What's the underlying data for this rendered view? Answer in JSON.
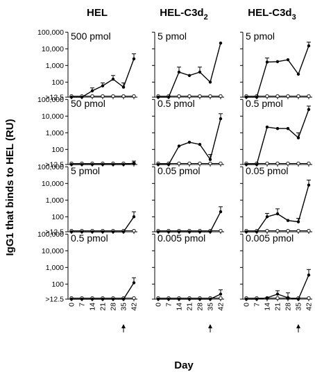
{
  "figure": {
    "ylabel": "IgG1 that binds to HEL (RU)",
    "xlabel": "Day",
    "columns": [
      "HEL",
      "HEL-C3d",
      "HEL-C3d"
    ],
    "column_subscripts": [
      "",
      "2",
      "3"
    ],
    "yticks": [
      "100,000",
      "10,000",
      "1,000",
      "100",
      ">12.5"
    ],
    "xticks": [
      "0",
      "7",
      "14",
      "21",
      "28",
      "35",
      "42"
    ],
    "arrow_day": 35
  },
  "chart_data": [
    {
      "type": "line",
      "column": "HEL",
      "dose": "500 pmol",
      "x": [
        0,
        7,
        14,
        21,
        28,
        35,
        42
      ],
      "series": [
        {
          "values": [
            12.5,
            12.5,
            30,
            60,
            150,
            50,
            2500
          ],
          "errors": [
            null,
            null,
            15,
            30,
            100,
            40,
            2500
          ]
        }
      ],
      "control": [
        12.5,
        12.5,
        12.5,
        12.5,
        12.5,
        12.5,
        12.5
      ]
    },
    {
      "type": "line",
      "column": "HEL-C3d2",
      "dose": "5 pmol",
      "x": [
        0,
        7,
        14,
        21,
        28,
        35,
        42
      ],
      "series": [
        {
          "values": [
            12.5,
            12.5,
            400,
            250,
            400,
            100,
            22000
          ],
          "errors": [
            null,
            null,
            400,
            null,
            400,
            null,
            null
          ]
        }
      ],
      "control": [
        12.5,
        12.5,
        12.5,
        12.5,
        12.5,
        12.5,
        12.5
      ]
    },
    {
      "type": "line",
      "column": "HEL-C3d3",
      "dose": "5 pmol",
      "x": [
        0,
        7,
        14,
        21,
        28,
        35,
        42
      ],
      "series": [
        {
          "values": [
            12.5,
            12.5,
            1600,
            1700,
            2200,
            300,
            15000
          ],
          "errors": [
            null,
            null,
            1200,
            null,
            null,
            null,
            10000
          ]
        }
      ],
      "control": [
        12.5,
        12.5,
        12.5,
        12.5,
        12.5,
        12.5,
        12.5
      ]
    },
    {
      "type": "line",
      "column": "HEL",
      "dose": "50 pmol",
      "x": [
        0,
        7,
        14,
        21,
        28,
        35,
        42
      ],
      "series": [
        {
          "values": [
            12.5,
            12.5,
            12.5,
            12.5,
            12.5,
            12.5,
            15
          ],
          "errors": [
            null,
            null,
            null,
            null,
            null,
            null,
            5
          ]
        }
      ],
      "control": [
        12.5,
        12.5,
        12.5,
        12.5,
        12.5,
        12.5,
        12.5
      ]
    },
    {
      "type": "line",
      "column": "HEL-C3d2",
      "dose": "0.5 pmol",
      "x": [
        0,
        7,
        14,
        21,
        28,
        35,
        42
      ],
      "series": [
        {
          "values": [
            12.5,
            12.5,
            160,
            270,
            200,
            25,
            7000
          ],
          "errors": [
            null,
            null,
            null,
            null,
            null,
            25,
            7000
          ]
        }
      ],
      "control": [
        12.5,
        12.5,
        12.5,
        12.5,
        12.5,
        12.5,
        12.5
      ]
    },
    {
      "type": "line",
      "column": "HEL-C3d3",
      "dose": "0.5 pmol",
      "x": [
        0,
        7,
        14,
        21,
        28,
        35,
        42
      ],
      "series": [
        {
          "values": [
            12.5,
            12.5,
            2200,
            1800,
            1800,
            500,
            25000
          ],
          "errors": [
            null,
            null,
            null,
            null,
            null,
            500,
            15000
          ]
        }
      ],
      "control": [
        12.5,
        12.5,
        12.5,
        12.5,
        12.5,
        12.5,
        12.5
      ]
    },
    {
      "type": "line",
      "column": "HEL",
      "dose": "5 pmol",
      "x": [
        0,
        7,
        14,
        21,
        28,
        35,
        42
      ],
      "series": [
        {
          "values": [
            12.5,
            12.5,
            12.5,
            12.5,
            12.5,
            12.5,
            100
          ],
          "errors": [
            null,
            null,
            null,
            null,
            null,
            null,
            100
          ]
        }
      ],
      "control": [
        12.5,
        12.5,
        12.5,
        12.5,
        12.5,
        12.5,
        12.5
      ]
    },
    {
      "type": "line",
      "column": "HEL-C3d2",
      "dose": "0.05 pmol",
      "x": [
        0,
        7,
        14,
        21,
        28,
        35,
        42
      ],
      "series": [
        {
          "values": [
            12.5,
            12.5,
            12.5,
            12.5,
            12.5,
            12.5,
            200
          ],
          "errors": [
            null,
            null,
            null,
            null,
            null,
            null,
            200
          ]
        }
      ],
      "control": [
        12.5,
        12.5,
        12.5,
        12.5,
        12.5,
        12.5,
        12.5
      ]
    },
    {
      "type": "line",
      "column": "HEL-C3d3",
      "dose": "0.05 pmol",
      "x": [
        0,
        7,
        14,
        21,
        28,
        35,
        42
      ],
      "series": [
        {
          "values": [
            12.5,
            12.5,
            100,
            150,
            60,
            50,
            8000
          ],
          "errors": [
            null,
            null,
            60,
            150,
            null,
            30,
            8000
          ]
        }
      ],
      "control": [
        12.5,
        12.5,
        12.5,
        12.5,
        12.5,
        12.5,
        12.5
      ]
    },
    {
      "type": "line",
      "column": "HEL",
      "dose": "0.5 pmol",
      "x": [
        0,
        7,
        14,
        21,
        28,
        35,
        42
      ],
      "series": [
        {
          "values": [
            12.5,
            12.5,
            12.5,
            12.5,
            12.5,
            12.5,
            120
          ],
          "errors": [
            null,
            null,
            null,
            null,
            null,
            null,
            120
          ]
        }
      ],
      "control": [
        12.5,
        12.5,
        12.5,
        12.5,
        12.5,
        12.5,
        12.5
      ]
    },
    {
      "type": "line",
      "column": "HEL-C3d2",
      "dose": "0.005 pmol",
      "x": [
        0,
        7,
        14,
        21,
        28,
        35,
        42
      ],
      "series": [
        {
          "values": [
            12.5,
            12.5,
            12.5,
            12.5,
            12.5,
            12.5,
            25
          ],
          "errors": [
            null,
            null,
            null,
            null,
            null,
            null,
            20
          ]
        }
      ],
      "control": [
        12.5,
        12.5,
        12.5,
        12.5,
        12.5,
        12.5,
        12.5
      ]
    },
    {
      "type": "line",
      "column": "HEL-C3d3",
      "dose": "0.005 pmol",
      "x": [
        0,
        7,
        14,
        21,
        28,
        35,
        42
      ],
      "series": [
        {
          "values": [
            12.5,
            12.5,
            15,
            25,
            15,
            12.5,
            350
          ],
          "errors": [
            null,
            null,
            null,
            15,
            15,
            null,
            400
          ]
        }
      ],
      "control": [
        12.5,
        12.5,
        12.5,
        12.5,
        12.5,
        12.5,
        12.5
      ]
    }
  ]
}
